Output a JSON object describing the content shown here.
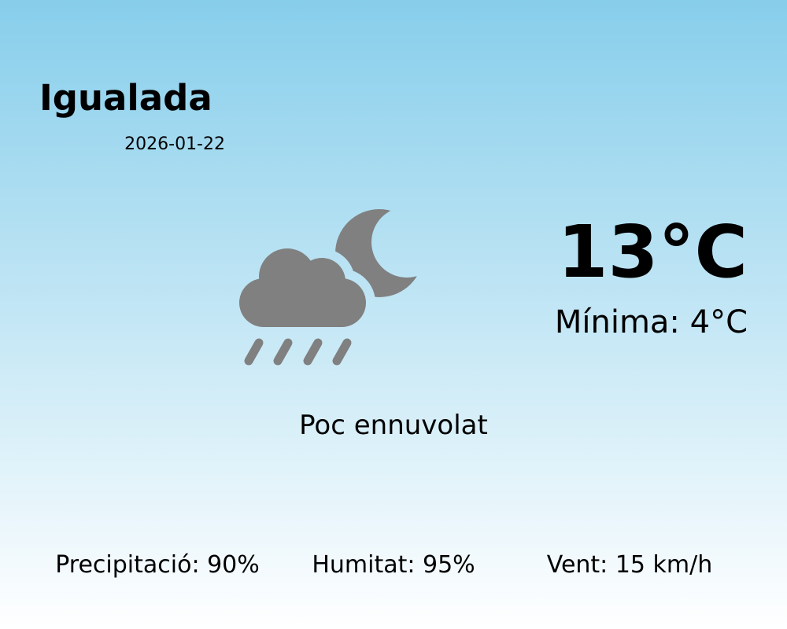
{
  "location": {
    "city": "Igualada",
    "date": "2026-01-22"
  },
  "current": {
    "temperature": "13°C",
    "minimum": "Mínima: 4°C",
    "condition": "Poc ennuvolat",
    "icon": "cloud-moon-rain-icon",
    "icon_color": "#808080"
  },
  "stats": {
    "precipitation": "Precipitació: 90%",
    "humidity": "Humitat: 95%",
    "wind": "Vent: 15 km/h"
  },
  "colors": {
    "background_top": "#87ceeb",
    "background_bottom": "#ffffff"
  }
}
